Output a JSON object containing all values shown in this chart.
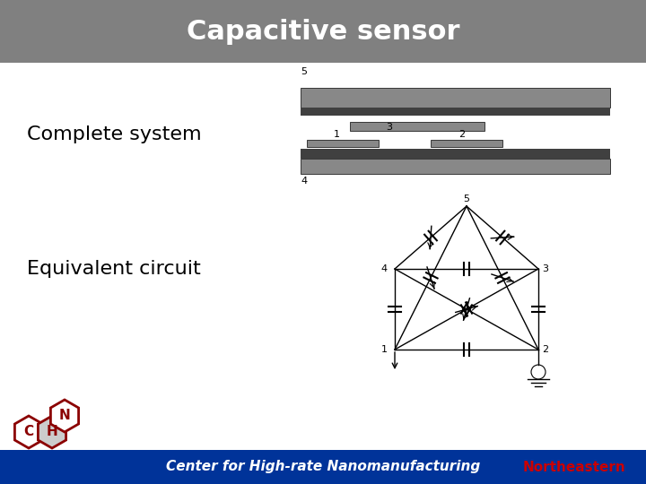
{
  "title": "Capacitive sensor",
  "title_bg": "#808080",
  "title_fg": "#ffffff",
  "slide_bg": "#ffffff",
  "label_complete": "Complete system",
  "label_equiv": "Equivalent circuit",
  "footer_text": "Center for High-rate Nanomanufacturing",
  "footer_bg": "#003399",
  "footer_fg": "#ffffff",
  "gray_dark": "#404040",
  "gray_mid": "#808080",
  "gray_light": "#aaaaaa",
  "gray_plate": "#888888"
}
